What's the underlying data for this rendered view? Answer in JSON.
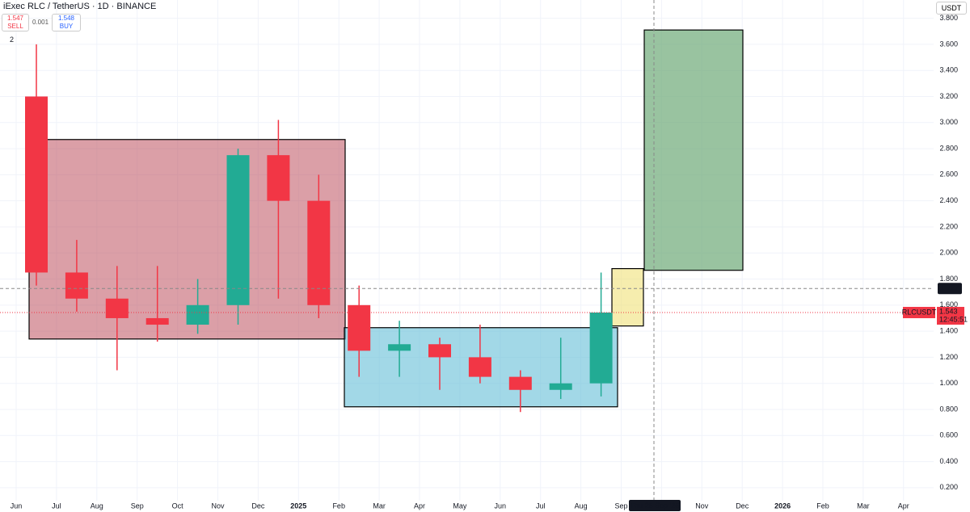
{
  "header": {
    "title": "iExec RLC / TetherUS · 1D · BINANCE",
    "sell_price": "1.547",
    "sell_label": "SELL",
    "spread": "0.001",
    "buy_price": "1.548",
    "buy_label": "BUY",
    "indicator_count": "2",
    "currency": "USDT"
  },
  "chart_data": {
    "type": "candlestick",
    "categories": [
      "Jun",
      "Jul",
      "Aug",
      "Sep",
      "Oct",
      "Nov",
      "Dec",
      "2025",
      "Feb",
      "Mar",
      "Apr",
      "May",
      "Jun",
      "Jul",
      "Aug",
      "Sep",
      null,
      "Nov",
      "Dec",
      "2026",
      "Feb",
      "Mar",
      "Apr"
    ],
    "open": [
      3.2,
      1.85,
      1.65,
      1.5,
      1.45,
      1.6,
      2.75,
      2.4,
      1.6,
      1.25,
      1.3,
      1.2,
      1.05,
      0.95,
      1.0,
      null,
      null,
      null,
      null,
      null,
      null,
      null,
      null
    ],
    "high": [
      3.6,
      2.1,
      1.9,
      1.9,
      1.8,
      2.8,
      3.02,
      2.6,
      1.75,
      1.48,
      1.35,
      1.45,
      1.1,
      1.35,
      1.85,
      null,
      null,
      null,
      null,
      null,
      null,
      null,
      null
    ],
    "low": [
      1.75,
      1.55,
      1.1,
      1.32,
      1.38,
      1.45,
      1.65,
      1.5,
      1.05,
      1.05,
      0.95,
      1.0,
      0.78,
      0.88,
      0.9,
      null,
      null,
      null,
      null,
      null,
      null,
      null,
      null
    ],
    "close": [
      1.85,
      1.65,
      1.5,
      1.45,
      1.6,
      2.75,
      2.4,
      1.6,
      1.25,
      1.3,
      1.2,
      1.05,
      0.95,
      1.0,
      1.543,
      null,
      null,
      null,
      null,
      null,
      null,
      null,
      null
    ],
    "up_color": "#22ab94",
    "down_color": "#f23645",
    "ylim": [
      0.1,
      3.94
    ],
    "yticks": [
      {
        "value": 0.2,
        "label": "0.200"
      },
      {
        "value": 0.4,
        "label": "0.400"
      },
      {
        "value": 0.6,
        "label": "0.600"
      },
      {
        "value": 0.8,
        "label": "0.800"
      },
      {
        "value": 1.0,
        "label": "1.000"
      },
      {
        "value": 1.2,
        "label": "1.200"
      },
      {
        "value": 1.4,
        "label": "1.400"
      },
      {
        "value": 1.6,
        "label": "1.600"
      },
      {
        "value": 1.8,
        "label": "1.800"
      },
      {
        "value": 2.0,
        "label": "2.000"
      },
      {
        "value": 2.2,
        "label": "2.200"
      },
      {
        "value": 2.4,
        "label": "2.400"
      },
      {
        "value": 2.6,
        "label": "2.600"
      },
      {
        "value": 2.8,
        "label": "2.800"
      },
      {
        "value": 3.0,
        "label": "3.000"
      },
      {
        "value": 3.2,
        "label": "3.200"
      },
      {
        "value": 3.4,
        "label": "3.400"
      },
      {
        "value": 3.6,
        "label": "3.600"
      },
      {
        "value": 3.8,
        "label": "3.800"
      }
    ],
    "grid": true,
    "zones": [
      {
        "low": 1.34,
        "high": 2.87,
        "color": "rgba(190,80,95,0.55)"
      },
      {
        "low": 0.82,
        "high": 1.427,
        "color": "rgba(100,190,215,0.6)"
      },
      {
        "low": 1.44,
        "high": 1.88,
        "color": "rgba(240,225,120,0.6)"
      },
      {
        "low": 1.867,
        "high": 3.71,
        "color": "rgba(110,170,120,0.7)"
      }
    ],
    "crosshair_price": 1.727,
    "crosshair_date": "Thu 25 Sep '25",
    "last_price": 1.543,
    "symbol": "RLCUSDT",
    "countdown": "12:45:51"
  }
}
